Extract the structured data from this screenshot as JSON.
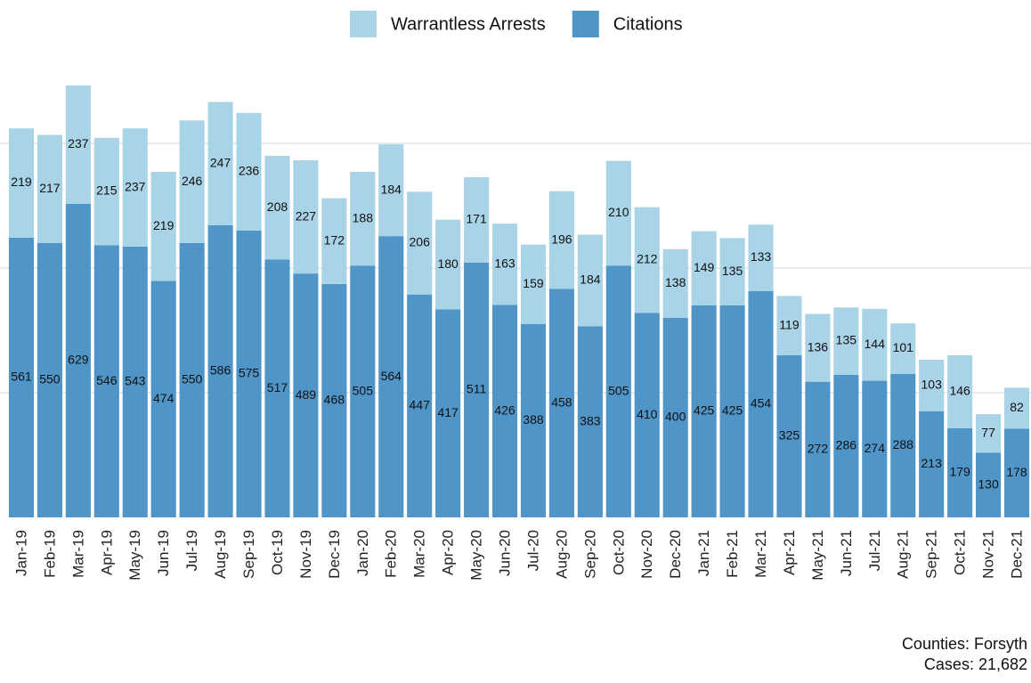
{
  "chart_data": {
    "type": "stacked_bar",
    "categories": [
      "Jan-19",
      "Feb-19",
      "Mar-19",
      "Apr-19",
      "May-19",
      "Jun-19",
      "Jul-19",
      "Aug-19",
      "Sep-19",
      "Oct-19",
      "Nov-19",
      "Dec-19",
      "Jan-20",
      "Feb-20",
      "Mar-20",
      "Apr-20",
      "May-20",
      "Jun-20",
      "Jul-20",
      "Aug-20",
      "Sep-20",
      "Oct-20",
      "Nov-20",
      "Dec-20",
      "Jan-21",
      "Feb-21",
      "Mar-21",
      "Apr-21",
      "May-21",
      "Jun-21",
      "Jul-21",
      "Aug-21",
      "Sep-21",
      "Oct-21",
      "Nov-21",
      "Dec-21"
    ],
    "series": [
      {
        "name": "Warrantless Arrests",
        "color": "#a9d3e6",
        "values": [
          219,
          217,
          237,
          215,
          237,
          219,
          246,
          247,
          236,
          208,
          227,
          172,
          188,
          184,
          206,
          180,
          171,
          163,
          159,
          196,
          184,
          210,
          212,
          138,
          149,
          135,
          133,
          119,
          136,
          135,
          144,
          101,
          103,
          146,
          77,
          82
        ]
      },
      {
        "name": "Citations",
        "color": "#4f95c8",
        "values": [
          561,
          550,
          629,
          546,
          543,
          474,
          550,
          586,
          575,
          517,
          489,
          468,
          505,
          564,
          447,
          417,
          511,
          426,
          388,
          458,
          383,
          505,
          410,
          400,
          425,
          425,
          454,
          325,
          272,
          286,
          274,
          288,
          213,
          179,
          130,
          178
        ]
      }
    ],
    "stack_from": "last",
    "ylim": [
      0,
      900
    ],
    "yticks": [
      250,
      500,
      750
    ],
    "grid": true,
    "ytick_labels": false,
    "legend": "top",
    "footer": [
      "Counties: Forsyth",
      "Cases: 21,682"
    ]
  }
}
